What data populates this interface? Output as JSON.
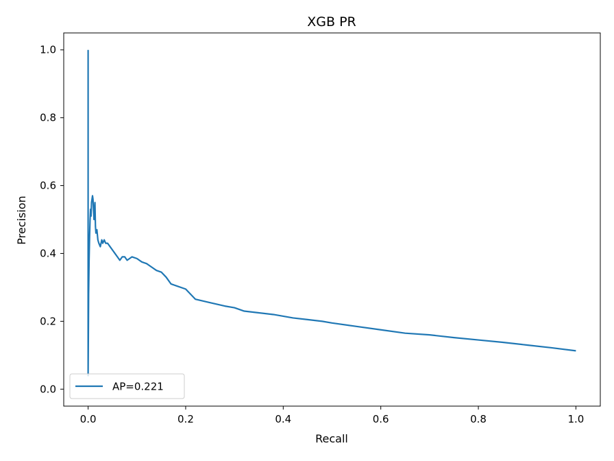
{
  "chart_data": {
    "type": "line",
    "title": "XGB PR",
    "xlabel": "Recall",
    "ylabel": "Precision",
    "xlim": [
      -0.05,
      1.05
    ],
    "ylim": [
      -0.05,
      1.05
    ],
    "x_ticks": [
      0.0,
      0.2,
      0.4,
      0.6,
      0.8,
      1.0
    ],
    "x_tick_labels": [
      "0.0",
      "0.2",
      "0.4",
      "0.6",
      "0.8",
      "1.0"
    ],
    "y_ticks": [
      0.0,
      0.2,
      0.4,
      0.6,
      0.8,
      1.0
    ],
    "y_tick_labels": [
      "0.0",
      "0.2",
      "0.4",
      "0.6",
      "0.8",
      "1.0"
    ],
    "grid": false,
    "legend": {
      "placement": "lower-left",
      "entries": [
        "AP=0.221"
      ]
    },
    "series": [
      {
        "name": "AP=0.221",
        "color": "#1f77b4",
        "x": [
          0.0,
          0.0,
          0.0005,
          0.001,
          0.002,
          0.003,
          0.004,
          0.005,
          0.006,
          0.007,
          0.008,
          0.009,
          0.01,
          0.011,
          0.012,
          0.013,
          0.014,
          0.015,
          0.016,
          0.018,
          0.02,
          0.022,
          0.025,
          0.028,
          0.03,
          0.033,
          0.036,
          0.04,
          0.045,
          0.05,
          0.055,
          0.06,
          0.065,
          0.07,
          0.075,
          0.08,
          0.09,
          0.1,
          0.11,
          0.12,
          0.13,
          0.14,
          0.15,
          0.16,
          0.17,
          0.18,
          0.2,
          0.22,
          0.25,
          0.28,
          0.3,
          0.32,
          0.35,
          0.38,
          0.4,
          0.42,
          0.45,
          0.48,
          0.5,
          0.55,
          0.6,
          0.65,
          0.7,
          0.75,
          0.8,
          0.85,
          0.9,
          0.95,
          1.0
        ],
        "y": [
          1.0,
          0.04,
          0.16,
          0.28,
          0.38,
          0.45,
          0.5,
          0.53,
          0.51,
          0.55,
          0.56,
          0.57,
          0.56,
          0.53,
          0.5,
          0.52,
          0.55,
          0.48,
          0.46,
          0.47,
          0.44,
          0.43,
          0.42,
          0.44,
          0.43,
          0.44,
          0.43,
          0.43,
          0.42,
          0.41,
          0.4,
          0.39,
          0.38,
          0.39,
          0.39,
          0.38,
          0.39,
          0.385,
          0.375,
          0.37,
          0.36,
          0.35,
          0.345,
          0.33,
          0.31,
          0.305,
          0.295,
          0.265,
          0.255,
          0.245,
          0.24,
          0.23,
          0.225,
          0.22,
          0.215,
          0.21,
          0.205,
          0.2,
          0.195,
          0.185,
          0.175,
          0.165,
          0.16,
          0.152,
          0.145,
          0.138,
          0.13,
          0.122,
          0.113
        ]
      }
    ]
  }
}
